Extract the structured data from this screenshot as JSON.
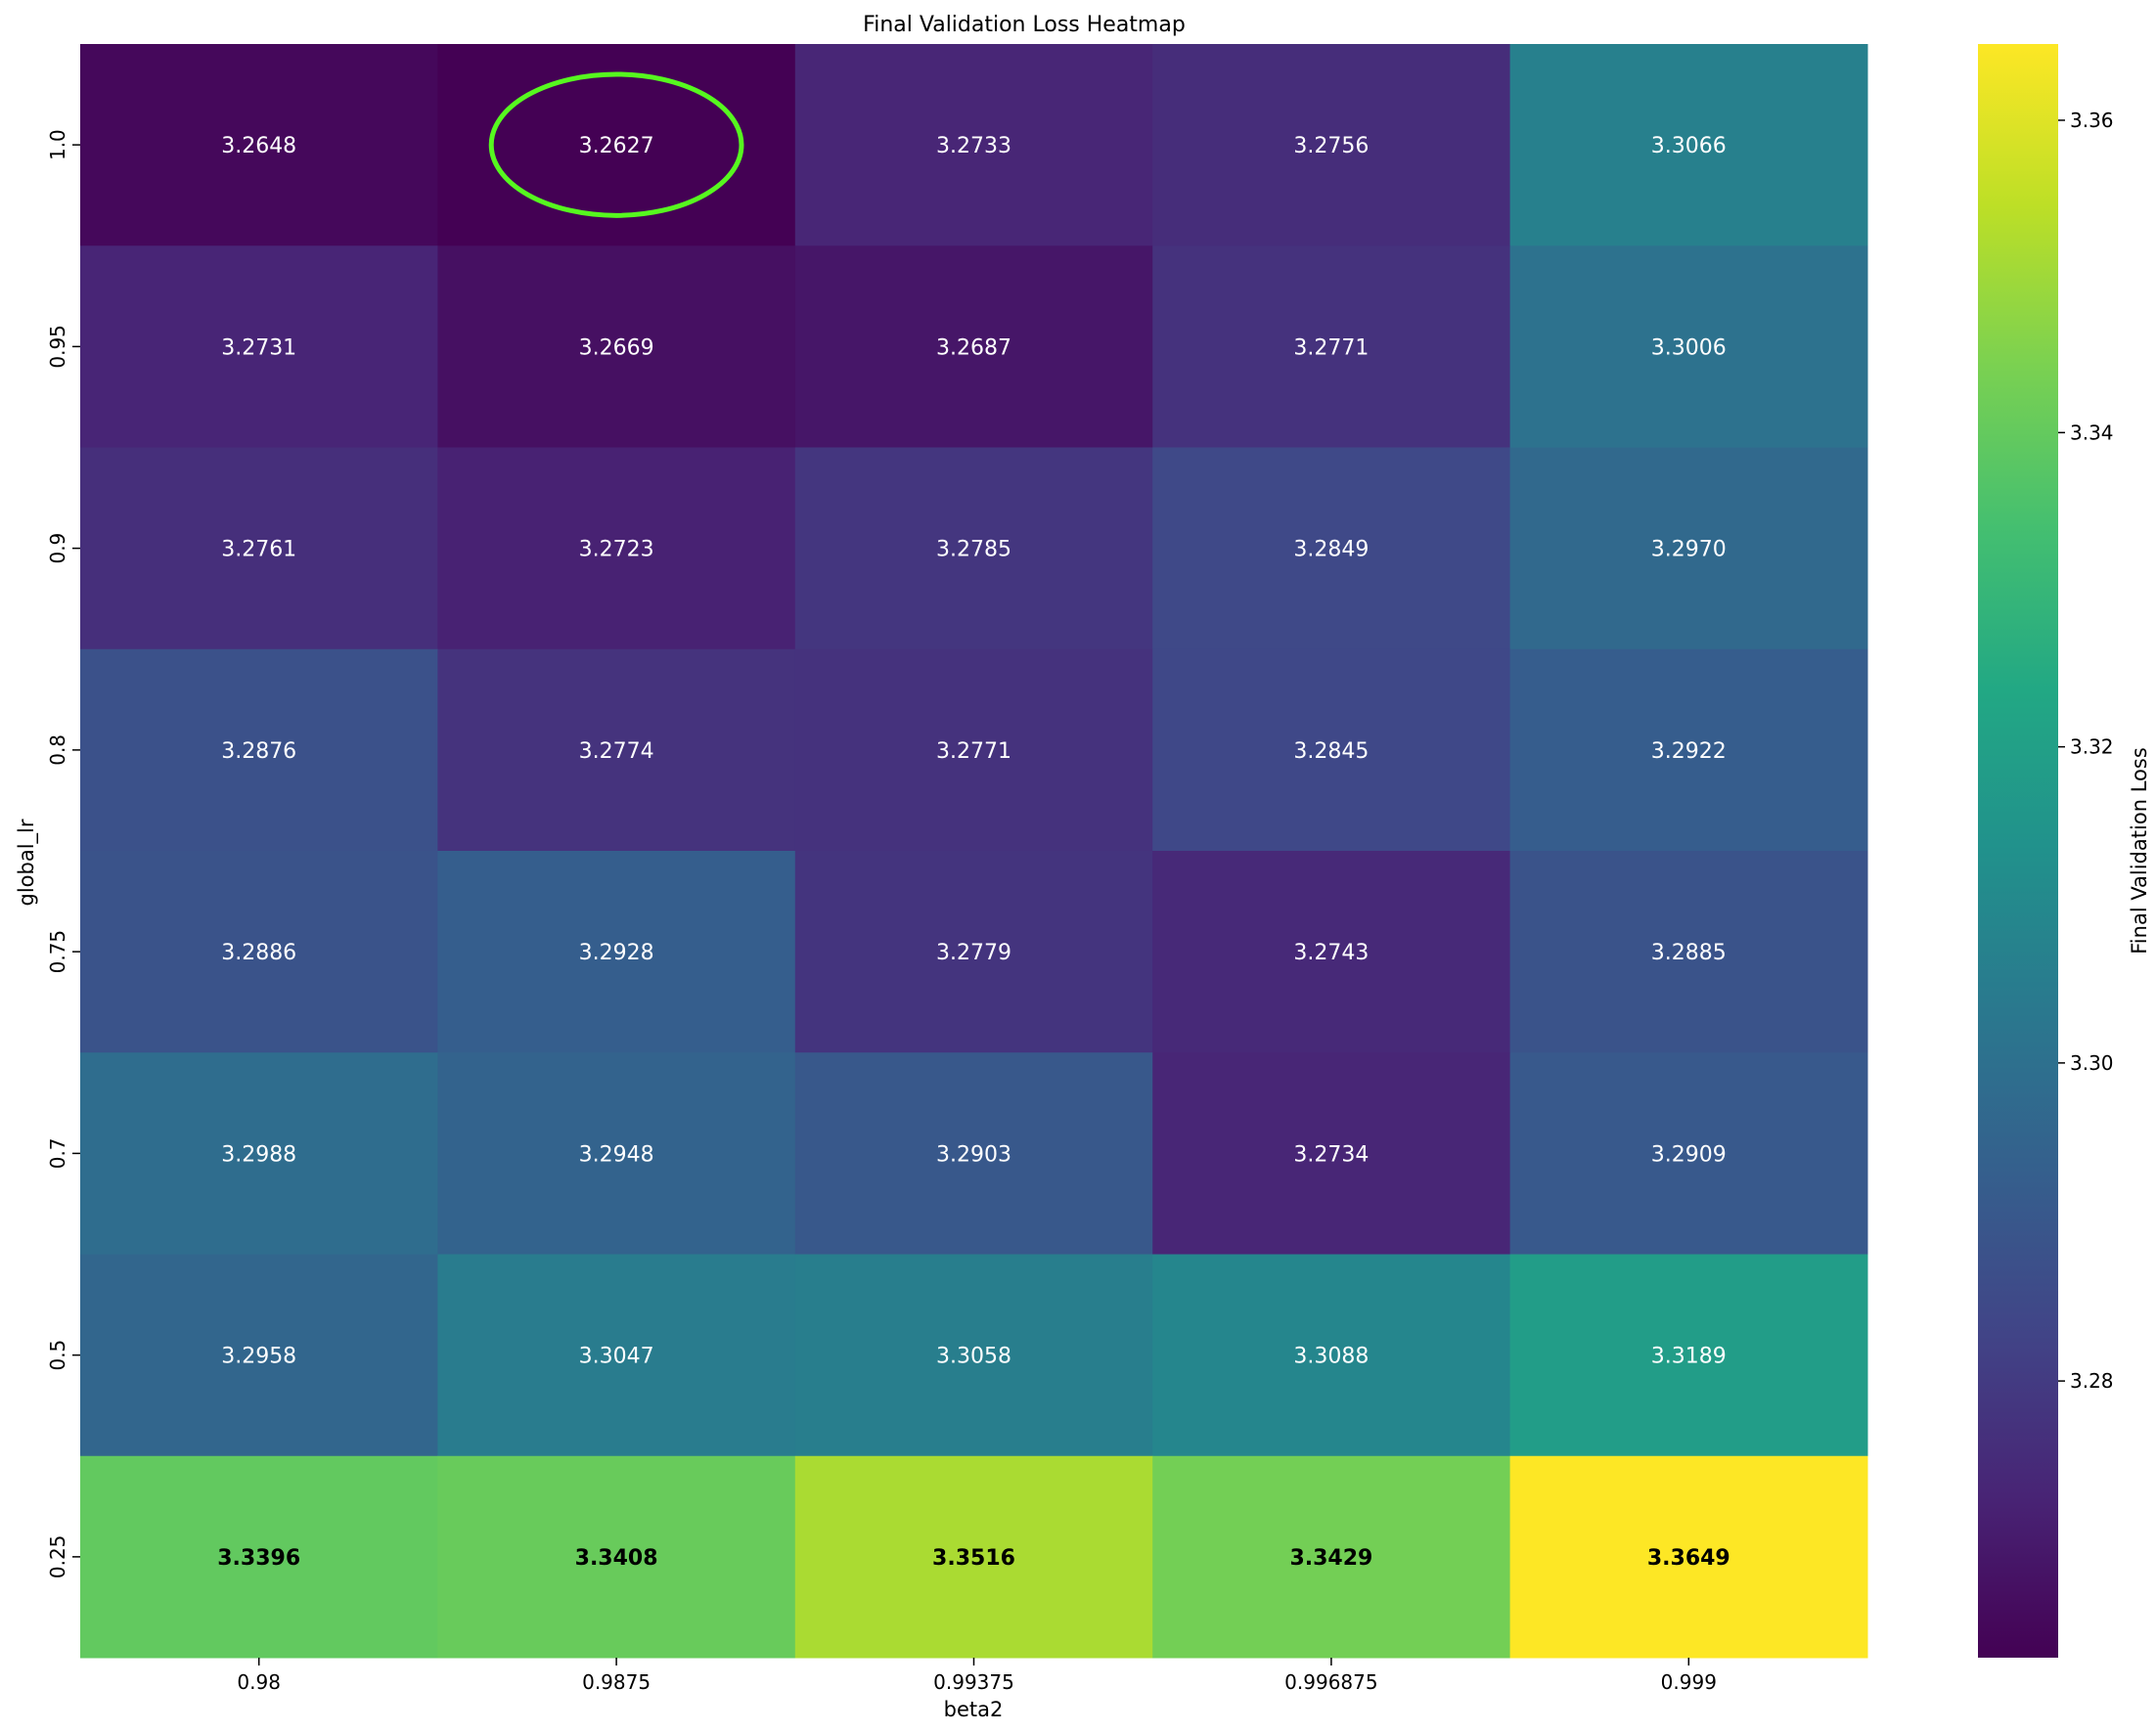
{
  "chart_data": {
    "type": "heatmap",
    "title": "Final Validation Loss Heatmap",
    "xlabel": "beta2",
    "ylabel": "global_lr",
    "x_categories": [
      "0.98",
      "0.9875",
      "0.99375",
      "0.996875",
      "0.999"
    ],
    "y_categories": [
      "1.0",
      "0.95",
      "0.9",
      "0.8",
      "0.75",
      "0.7",
      "0.5",
      "0.25"
    ],
    "values": [
      [
        3.2648,
        3.2627,
        3.2733,
        3.2756,
        3.3066
      ],
      [
        3.2731,
        3.2669,
        3.2687,
        3.2771,
        3.3006
      ],
      [
        3.2761,
        3.2723,
        3.2785,
        3.2849,
        3.297
      ],
      [
        3.2876,
        3.2774,
        3.2771,
        3.2845,
        3.2922
      ],
      [
        3.2886,
        3.2928,
        3.2779,
        3.2743,
        3.2885
      ],
      [
        3.2988,
        3.2948,
        3.2903,
        3.2734,
        3.2909
      ],
      [
        3.2958,
        3.3047,
        3.3058,
        3.3088,
        3.3189
      ],
      [
        3.3396,
        3.3408,
        3.3516,
        3.3429,
        3.3649
      ]
    ],
    "highlight": {
      "row": 0,
      "col": 1,
      "color": "#56f81f"
    },
    "colorbar": {
      "label": "Final Validation Loss",
      "colormap": "viridis",
      "ticks": [
        "3.28",
        "3.30",
        "3.32",
        "3.34",
        "3.36"
      ],
      "range": [
        3.2627,
        3.3649
      ],
      "scale": "log"
    },
    "legend": "none",
    "grid": false
  }
}
